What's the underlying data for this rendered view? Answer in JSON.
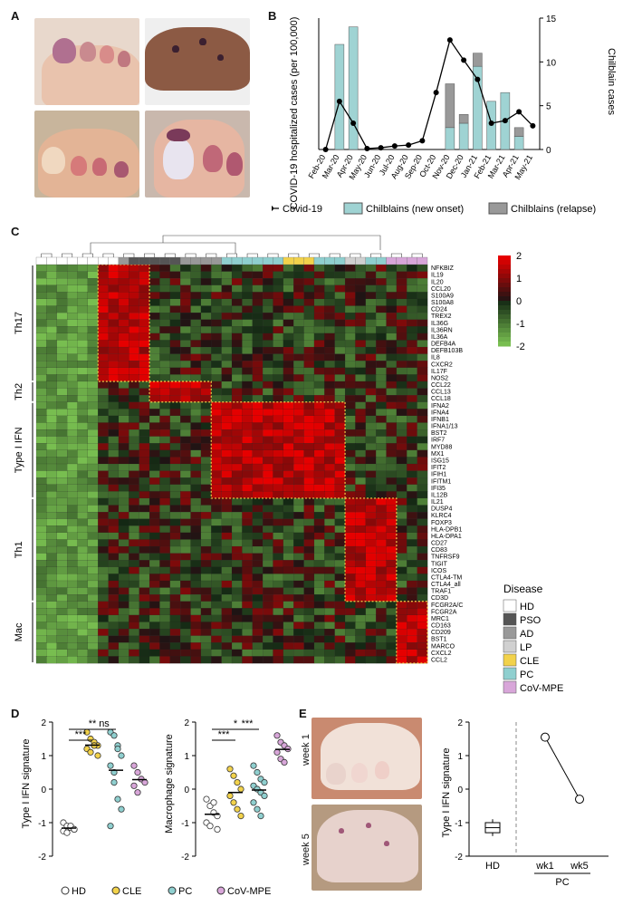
{
  "panels": {
    "a": "A",
    "b": "B",
    "c": "C",
    "d": "D",
    "e": "E"
  },
  "colors": {
    "teal": "#9fd3d3",
    "gray": "#999999",
    "red": "#d7191c",
    "green": "#7cc04a",
    "yellow": "#f2d24b",
    "violet": "#d8a6d9"
  },
  "panel_b": {
    "chart_data": {
      "type": "bar",
      "categories": [
        "Feb-20",
        "Mar-20",
        "Apr-20",
        "May-20",
        "Jun-20",
        "Jul-20",
        "Aug-20",
        "Sep-20",
        "Oct-20",
        "Nov-20",
        "Dec-20",
        "Jan-21",
        "Feb-21",
        "Mar-21",
        "Apr-21",
        "May-21"
      ],
      "ylabel": "COVID-19 hospitalized cases (per 100,000)",
      "y2label": "Chilblain cases",
      "y2lim": [
        0,
        15
      ],
      "y2ticks": [
        "0",
        "5",
        "10",
        "15"
      ],
      "series": [
        {
          "name": "Chilblains (new onset)",
          "type": "bar",
          "values": [
            null,
            12,
            14,
            null,
            null,
            null,
            null,
            null,
            null,
            2.5,
            3,
            9.5,
            5.5,
            6.5,
            1.5,
            null
          ]
        },
        {
          "name": "Chilblains (relapse)",
          "type": "bar",
          "values": [
            null,
            0,
            0,
            null,
            null,
            null,
            null,
            null,
            null,
            5,
            1,
            1.5,
            0,
            0,
            1,
            null
          ]
        },
        {
          "name": "Covid-19",
          "type": "line",
          "values": [
            0,
            5.5,
            3,
            0.1,
            0.2,
            0.4,
            0.5,
            1,
            6.5,
            12.5,
            10.2,
            8,
            3,
            3.3,
            4.3,
            2.7
          ]
        }
      ],
      "legend": [
        "Covid-19",
        "Chilblains (new onset)",
        "Chilblains (relapse)"
      ]
    }
  },
  "panel_c": {
    "legend_title": "Disease",
    "scale_ticks": [
      "2",
      "1",
      "0",
      "-1",
      "-2"
    ],
    "groups": [
      "Th17",
      "Th2",
      "Type I IFN",
      "Th1",
      "Mac"
    ],
    "diseases": [
      "HD",
      "PSO",
      "AD",
      "LP",
      "CLE",
      "PC",
      "CoV-MPE"
    ],
    "disease_colors": [
      "#ffffff",
      "#555555",
      "#999999",
      "#d0d0d0",
      "#f2d24b",
      "#8fcfcf",
      "#d8a6d9"
    ],
    "genes": [
      "NFKBIZ",
      "IL19",
      "IL20",
      "CCL20",
      "S100A9",
      "S100A8",
      "CD24",
      "TREX2",
      "IL36G",
      "IL36RN",
      "IL36A",
      "DEFB4A",
      "DEFB103B",
      "IL8",
      "CXCR2",
      "IL17F",
      "NOS2",
      "CCL22",
      "CCL13",
      "CCL18",
      "IFNA2",
      "IFNA4",
      "IFNB1",
      "IFNA1/13",
      "BST2",
      "IRF7",
      "MYD88",
      "MX1",
      "ISG15",
      "IFIT2",
      "IFIH1",
      "IFITM1",
      "IFI35",
      "IL12B",
      "IL21",
      "DUSP4",
      "KLRC4",
      "FOXP3",
      "HLA-DPB1",
      "HLA-DPA1",
      "CD27",
      "CD83",
      "TNFRSF9",
      "TIGIT",
      "ICOS",
      "CTLA4-TM",
      "CTLA4_all",
      "TRAF1",
      "CD3D",
      "FCGR2A/C",
      "FCGR2A",
      "MRC1",
      "CD163",
      "CD209",
      "BST1",
      "MARCO",
      "CXCL2",
      "CCL2"
    ]
  },
  "panel_d": {
    "chart_data": [
      {
        "type": "scatter",
        "ylabel": "Type I IFN signature",
        "ylim": [
          -2,
          2
        ],
        "yticks": [
          "2",
          "1",
          "0",
          "-1",
          "-2"
        ],
        "groups": [
          {
            "name": "HD",
            "values": [
              -1.0,
              -1.1,
              -1.15,
              -1.2,
              -1.25,
              -1.3,
              -1.1,
              -1.2
            ]
          },
          {
            "name": "CLE",
            "values": [
              1.7,
              1.5,
              1.4,
              1.3,
              1.2,
              1.1,
              1.3,
              1.0
            ]
          },
          {
            "name": "PC",
            "values": [
              1.7,
              1.6,
              1.3,
              1.0,
              0.7,
              0.2,
              -0.3,
              -0.6,
              -1.1,
              0.5,
              1.2
            ]
          },
          {
            "name": "CoV-MPE",
            "values": [
              0.7,
              0.5,
              0.3,
              0.2,
              0.1,
              -0.1
            ]
          }
        ],
        "annotations": [
          "***",
          "**",
          "ns"
        ]
      },
      {
        "type": "scatter",
        "ylabel": "Macrophage signature",
        "ylim": [
          -2,
          2
        ],
        "yticks": [
          "2",
          "1",
          "0",
          "-1",
          "-2"
        ],
        "groups": [
          {
            "name": "HD",
            "values": [
              -0.3,
              -0.5,
              -0.7,
              -0.8,
              -1.0,
              -1.1,
              -0.4,
              -1.2
            ]
          },
          {
            "name": "CLE",
            "values": [
              0.6,
              0.4,
              0.2,
              0.0,
              -0.2,
              -0.4,
              -0.6,
              -0.8
            ]
          },
          {
            "name": "PC",
            "values": [
              0.7,
              0.5,
              0.3,
              0.2,
              0.1,
              0.0,
              -0.1,
              -0.2,
              -0.4,
              -0.6,
              -0.8
            ]
          },
          {
            "name": "CoV-MPE",
            "values": [
              1.6,
              1.4,
              1.3,
              1.2,
              1.1,
              0.9,
              0.8
            ]
          }
        ],
        "annotations": [
          "***",
          "*",
          "***"
        ]
      }
    ],
    "legend": [
      "HD",
      "CLE",
      "PC",
      "CoV-MPE"
    ]
  },
  "panel_e": {
    "week1": "week 1",
    "week5": "week 5",
    "chart_data": {
      "type": "line",
      "ylabel": "Type I IFN signature",
      "ylim": [
        -2,
        2
      ],
      "yticks": [
        "2",
        "1",
        "0",
        "-1",
        "-2"
      ],
      "categories": [
        "HD",
        "wk1",
        "wk5"
      ],
      "group_label": "PC",
      "hd_box": {
        "min": -1.4,
        "q1": -1.3,
        "median": -1.15,
        "q3": -1.0,
        "max": -0.9
      },
      "pc_values": [
        1.55,
        -0.3
      ]
    }
  }
}
